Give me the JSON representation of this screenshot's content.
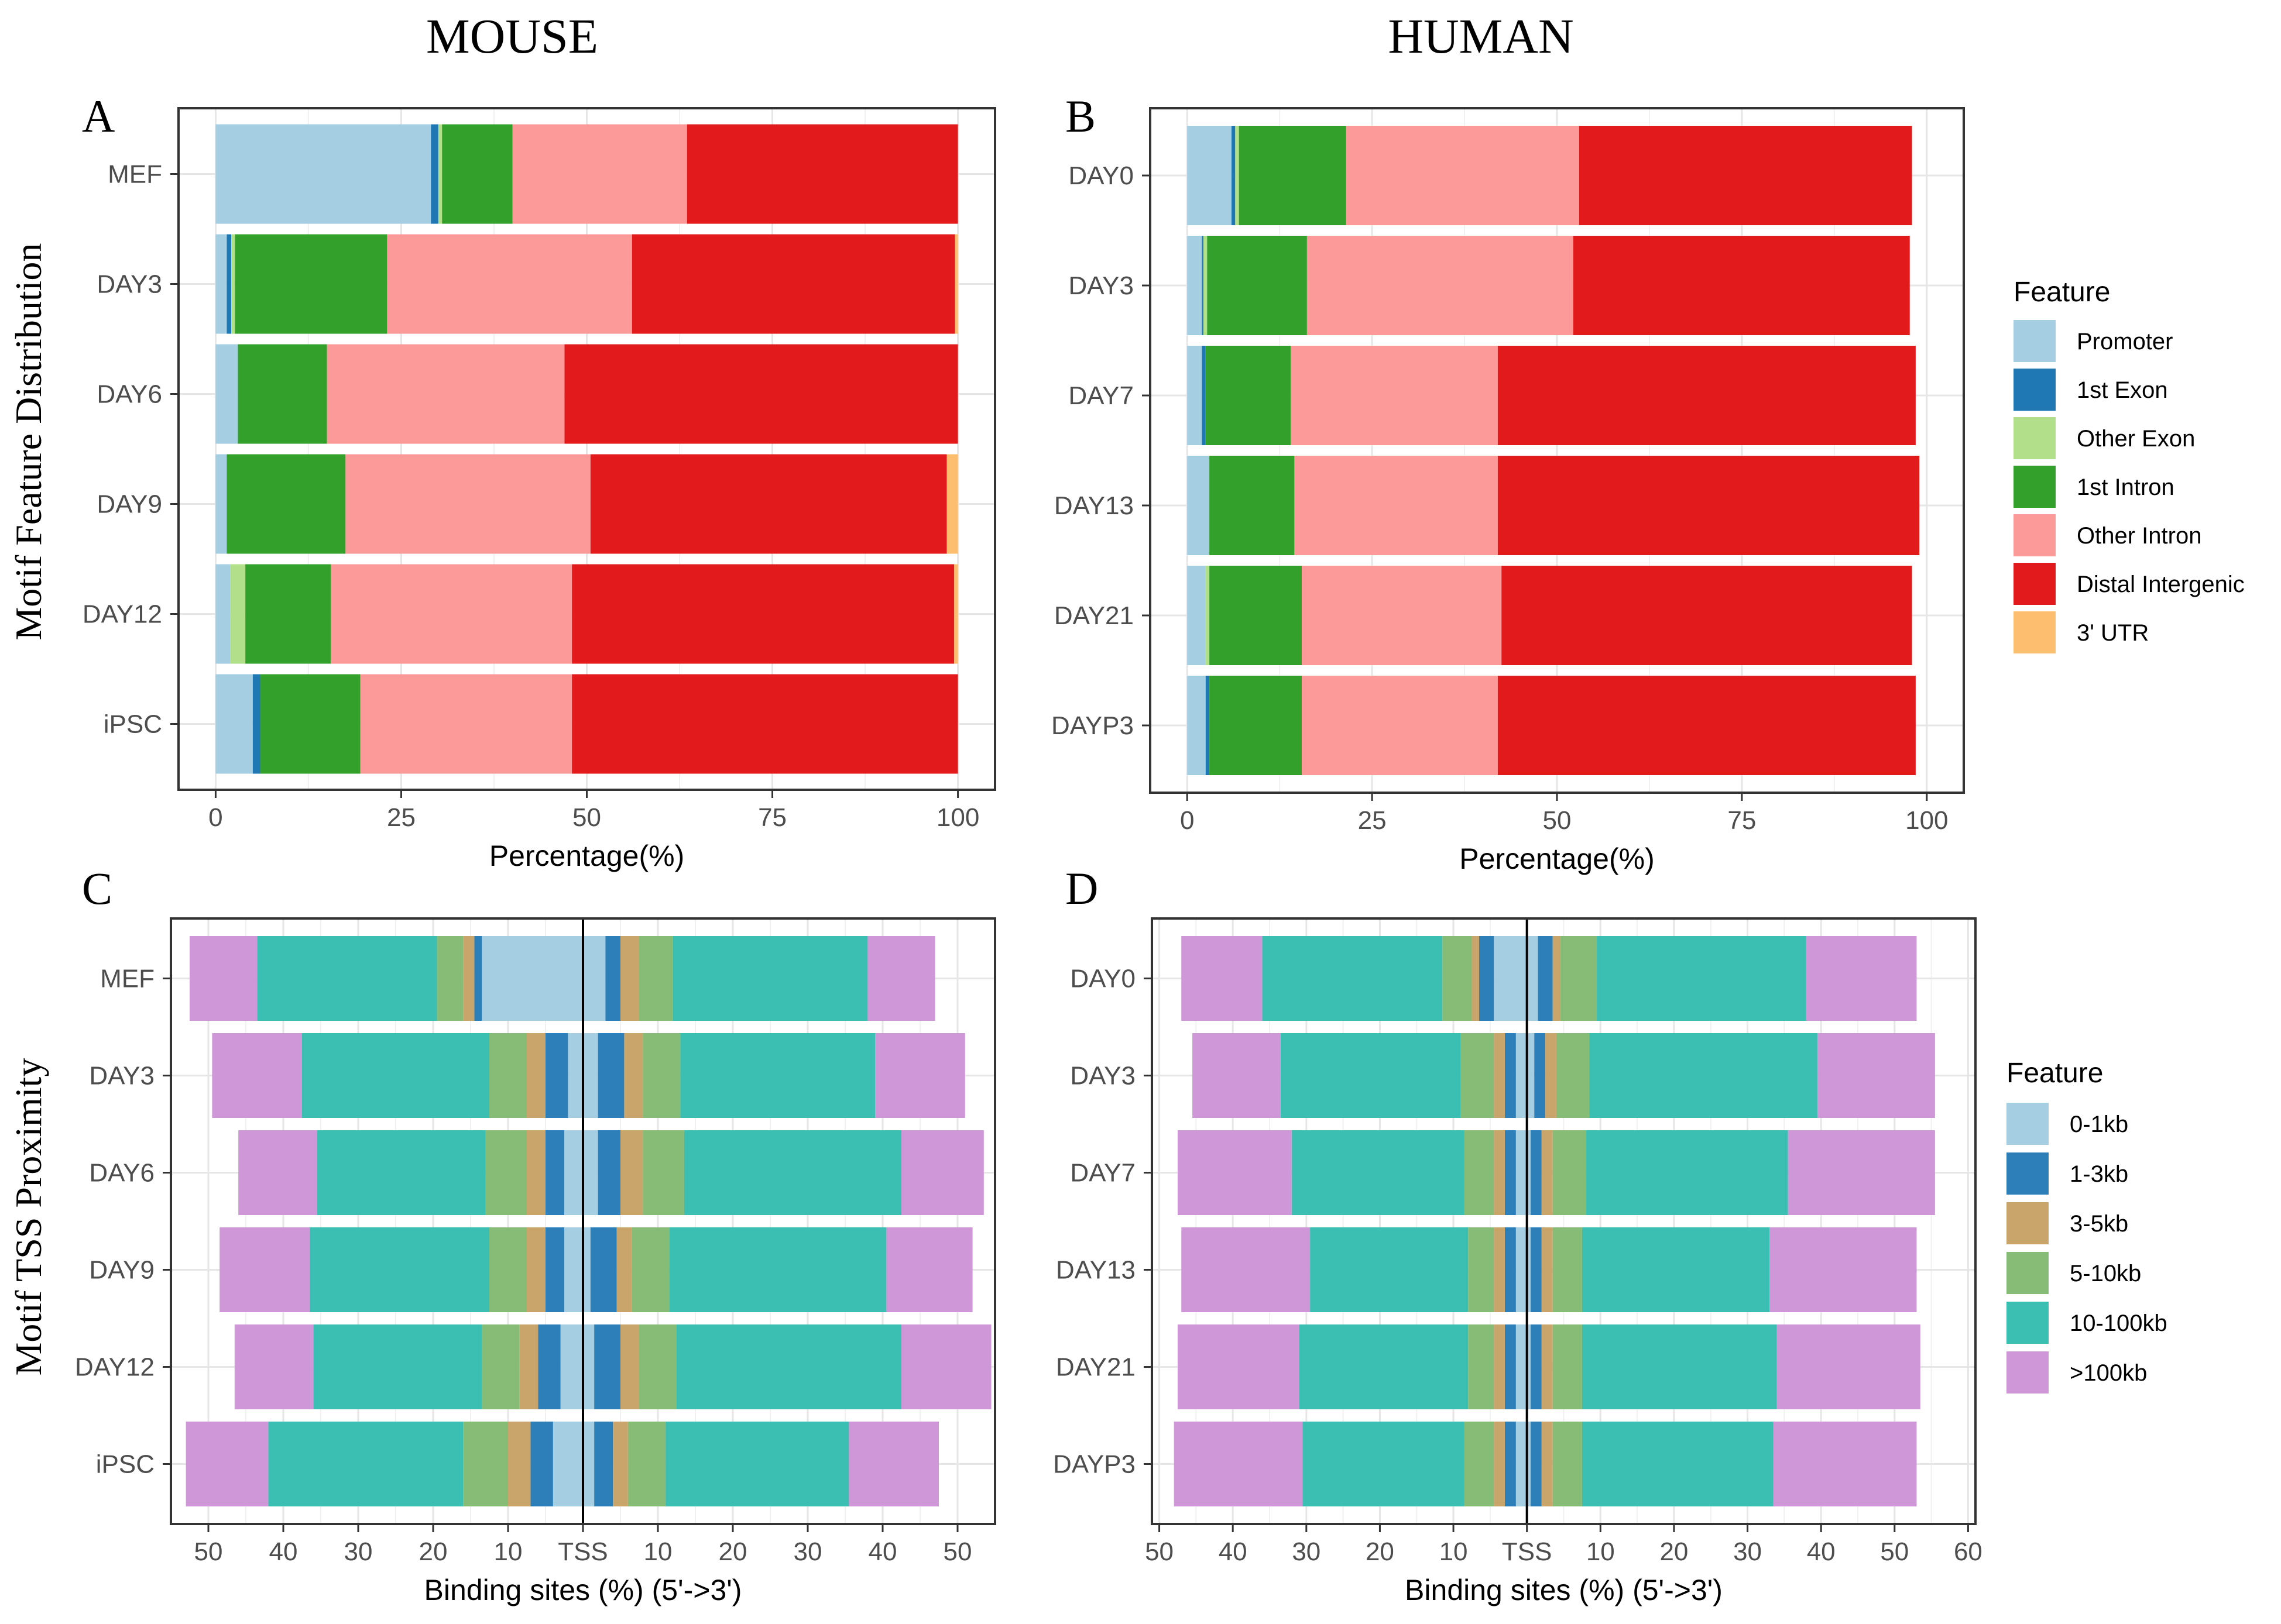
{
  "headers": {
    "left": "MOUSE",
    "right": "HUMAN"
  },
  "row_titles": {
    "top": "Motif Feature Distribution",
    "bottom": "Motif TSS Proximity"
  },
  "colors": {
    "Promoter": "#a6cee3",
    "1st Exon": "#1f78b4",
    "Other Exon": "#b2df8a",
    "1st Intron": "#33a02c",
    "Other Intron": "#fb9a99",
    "Distal Intergenic": "#e31a1c",
    "3' UTR": "#fdbf6f",
    "0-1kb": "#a6cee3",
    "1-3kb": "#2c7fb8",
    "3-5kb": "#c9a56b",
    "5-10kb": "#86bc76",
    "10-100kb": "#3bbfb2",
    ">100kb": "#cf97d8"
  },
  "legends": {
    "feature": {
      "title": "Feature",
      "items": [
        "Promoter",
        "1st Exon",
        "Other Exon",
        "1st Intron",
        "Other Intron",
        "Distal Intergenic",
        "3' UTR"
      ]
    },
    "tss": {
      "title": "Feature",
      "items": [
        "0-1kb",
        "1-3kb",
        "3-5kb",
        "5-10kb",
        "10-100kb",
        ">100kb"
      ]
    }
  },
  "chart_data": [
    {
      "panel": "A",
      "type": "bar",
      "orientation": "horizontal",
      "stacked": true,
      "xlabel": "Percentage(%)",
      "xlim": [
        -5,
        105
      ],
      "xticks": [
        0,
        25,
        50,
        75,
        100
      ],
      "categories": [
        "MEF",
        "DAY3",
        "DAY6",
        "DAY9",
        "DAY12",
        "iPSC"
      ],
      "series": [
        {
          "name": "Promoter",
          "values": [
            29,
            1.5,
            3,
            1.5,
            2,
            5
          ]
        },
        {
          "name": "1st Exon",
          "values": [
            1,
            0.6,
            0,
            0,
            0,
            1
          ]
        },
        {
          "name": "Other Exon",
          "values": [
            0.5,
            0.5,
            0,
            0,
            2,
            0
          ]
        },
        {
          "name": "1st Intron",
          "values": [
            9.5,
            20.5,
            12,
            16,
            11.5,
            13.5
          ]
        },
        {
          "name": "Other Intron",
          "values": [
            23.5,
            33,
            32,
            33,
            32.5,
            28.5
          ]
        },
        {
          "name": "Distal Intergenic",
          "values": [
            36.5,
            43.5,
            53,
            48,
            51.5,
            52
          ]
        },
        {
          "name": "3' UTR",
          "values": [
            0,
            0.4,
            0,
            1.5,
            0.5,
            0
          ]
        }
      ]
    },
    {
      "panel": "B",
      "type": "bar",
      "orientation": "horizontal",
      "stacked": true,
      "xlabel": "Percentage(%)",
      "xlim": [
        -5,
        105
      ],
      "xticks": [
        0,
        25,
        50,
        75,
        100
      ],
      "categories": [
        "DAY0",
        "DAY3",
        "DAY7",
        "DAY13",
        "DAY21",
        "DAYP3"
      ],
      "series": [
        {
          "name": "Promoter",
          "values": [
            6,
            2,
            2,
            3,
            2.5,
            2.5
          ]
        },
        {
          "name": "1st Exon",
          "values": [
            0.5,
            0.2,
            0.5,
            0,
            0,
            0.5
          ]
        },
        {
          "name": "Other Exon",
          "values": [
            0.5,
            0.5,
            0,
            0,
            0.5,
            0
          ]
        },
        {
          "name": "1st Intron",
          "values": [
            14.5,
            13.5,
            11.5,
            11.5,
            12.5,
            12.5
          ]
        },
        {
          "name": "Other Intron",
          "values": [
            31.5,
            36,
            28,
            27.5,
            27,
            26.5
          ]
        },
        {
          "name": "Distal Intergenic",
          "values": [
            45,
            45.5,
            56.5,
            57,
            55.5,
            56.5
          ]
        },
        {
          "name": "3' UTR",
          "values": [
            0,
            0,
            0,
            0,
            0,
            0
          ]
        }
      ]
    },
    {
      "panel": "C",
      "type": "bar",
      "orientation": "horizontal",
      "stacked": true,
      "diverging": true,
      "xlabel": "Binding sites (%) (5'->3')",
      "xlim": [
        -55,
        55
      ],
      "xticks": [
        -50,
        -40,
        -30,
        -20,
        -10,
        0,
        10,
        20,
        30,
        40,
        50
      ],
      "xticklabels": [
        "50",
        "40",
        "30",
        "20",
        "10",
        "TSS",
        "10",
        "20",
        "30",
        "40",
        "50"
      ],
      "categories": [
        "MEF",
        "DAY3",
        "DAY6",
        "DAY9",
        "DAY12",
        "iPSC"
      ],
      "series_upstream": [
        {
          "name": "0-1kb",
          "values": [
            13.5,
            2,
            2.5,
            2.5,
            3,
            4
          ]
        },
        {
          "name": "1-3kb",
          "values": [
            1,
            3,
            2.5,
            2.5,
            3,
            3
          ]
        },
        {
          "name": "3-5kb",
          "values": [
            1.5,
            2.5,
            2.5,
            2.5,
            2.5,
            3
          ]
        },
        {
          "name": "5-10kb",
          "values": [
            3.5,
            5,
            5.5,
            5,
            5,
            6
          ]
        },
        {
          "name": "10-100kb",
          "values": [
            24,
            25,
            22.5,
            24,
            22.5,
            26
          ]
        },
        {
          "name": ">100kb",
          "values": [
            9,
            12,
            10.5,
            12,
            10.5,
            11
          ]
        }
      ],
      "series_downstream": [
        {
          "name": "0-1kb",
          "values": [
            3,
            2,
            2,
            1,
            1.5,
            1.5
          ]
        },
        {
          "name": "1-3kb",
          "values": [
            2,
            3.5,
            3,
            3.5,
            3.5,
            2.5
          ]
        },
        {
          "name": "3-5kb",
          "values": [
            2.5,
            2.5,
            3,
            2,
            2.5,
            2
          ]
        },
        {
          "name": "5-10kb",
          "values": [
            4.5,
            5,
            5.5,
            5,
            5,
            5
          ]
        },
        {
          "name": "10-100kb",
          "values": [
            26,
            26,
            29,
            29,
            30,
            24.5
          ]
        },
        {
          "name": ">100kb",
          "values": [
            9,
            12,
            11,
            11.5,
            12,
            12
          ]
        }
      ]
    },
    {
      "panel": "D",
      "type": "bar",
      "orientation": "horizontal",
      "stacked": true,
      "diverging": true,
      "xlabel": "Binding sites (%) (5'->3')",
      "xlim": [
        -51,
        61
      ],
      "xticks": [
        -50,
        -40,
        -30,
        -20,
        -10,
        0,
        10,
        20,
        30,
        40,
        50,
        60
      ],
      "xticklabels": [
        "50",
        "40",
        "30",
        "20",
        "10",
        "TSS",
        "10",
        "20",
        "30",
        "40",
        "50",
        "60"
      ],
      "categories": [
        "DAY0",
        "DAY3",
        "DAY7",
        "DAY13",
        "DAY21",
        "DAYP3"
      ],
      "series_upstream": [
        {
          "name": "0-1kb",
          "values": [
            4.5,
            1.5,
            1.5,
            1.5,
            1.5,
            1.5
          ]
        },
        {
          "name": "1-3kb",
          "values": [
            2,
            1.5,
            1.5,
            1.5,
            1.5,
            1.5
          ]
        },
        {
          "name": "3-5kb",
          "values": [
            1,
            1.5,
            1.5,
            1.5,
            1.5,
            1.5
          ]
        },
        {
          "name": "5-10kb",
          "values": [
            4,
            4.5,
            4,
            3.5,
            3.5,
            4
          ]
        },
        {
          "name": "10-100kb",
          "values": [
            24.5,
            24.5,
            23.5,
            21.5,
            23,
            22
          ]
        },
        {
          "name": ">100kb",
          "values": [
            11,
            12,
            15.5,
            17.5,
            16.5,
            17.5
          ]
        }
      ],
      "series_downstream": [
        {
          "name": "0-1kb",
          "values": [
            1.5,
            1,
            0.5,
            0.5,
            0.5,
            0.5
          ]
        },
        {
          "name": "1-3kb",
          "values": [
            2,
            1.5,
            1.5,
            1.5,
            1.5,
            1.5
          ]
        },
        {
          "name": "3-5kb",
          "values": [
            1,
            1.5,
            1.5,
            1.5,
            1.5,
            1.5
          ]
        },
        {
          "name": "5-10kb",
          "values": [
            5,
            4.5,
            4.5,
            4,
            4,
            4
          ]
        },
        {
          "name": "10-100kb",
          "values": [
            28.5,
            31,
            27.5,
            25.5,
            26.5,
            26
          ]
        },
        {
          "name": ">100kb",
          "values": [
            15,
            16,
            20,
            20,
            19.5,
            19.5
          ]
        }
      ]
    }
  ]
}
